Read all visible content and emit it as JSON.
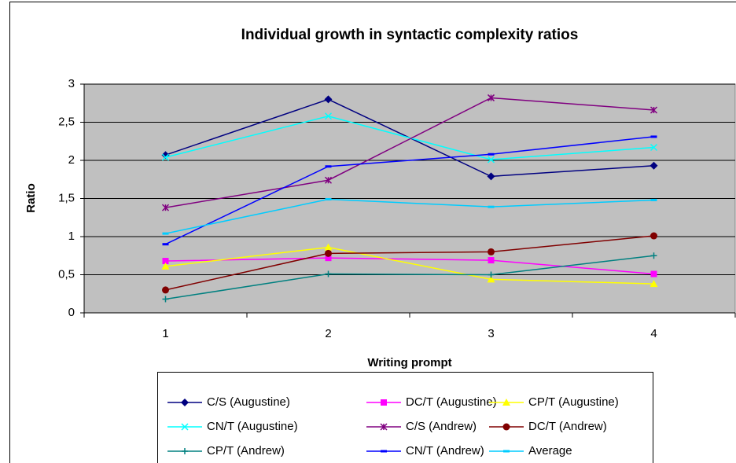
{
  "chart_data": {
    "type": "line",
    "title": "Individual growth in syntactic complexity ratios",
    "x_label": "Writing prompt",
    "y_label": "Ratio",
    "categories": [
      "1",
      "2",
      "3",
      "4"
    ],
    "ylim": [
      0,
      3
    ],
    "yticks": [
      0,
      {
        "value": 0.5,
        "label": "0,5"
      },
      1,
      {
        "value": 1.5,
        "label": "1,5"
      },
      2,
      {
        "value": 2.5,
        "label": "2,5"
      },
      3
    ],
    "grid": true,
    "series": [
      {
        "name": "C/S (Augustine)",
        "color": "#000080",
        "marker": "diamond",
        "values": [
          2.07,
          2.8,
          1.79,
          1.93
        ]
      },
      {
        "name": "DC/T (Augustine)",
        "color": "#FF00FF",
        "marker": "square",
        "values": [
          0.68,
          0.72,
          0.69,
          0.51
        ]
      },
      {
        "name": "CP/T (Augustine)",
        "color": "#FFFF00",
        "marker": "triangle",
        "values": [
          0.61,
          0.86,
          0.44,
          0.38
        ]
      },
      {
        "name": "CN/T (Augustine)",
        "color": "#00FFFF",
        "marker": "x",
        "values": [
          2.04,
          2.58,
          2.01,
          2.17
        ]
      },
      {
        "name": "C/S (Andrew)",
        "color": "#800080",
        "marker": "star",
        "values": [
          1.38,
          1.74,
          2.82,
          2.66
        ]
      },
      {
        "name": "DC/T (Andrew)",
        "color": "#800000",
        "marker": "circle",
        "values": [
          0.3,
          0.78,
          0.8,
          1.01
        ]
      },
      {
        "name": "CP/T (Andrew)",
        "color": "#008080",
        "marker": "plus",
        "values": [
          0.18,
          0.51,
          0.5,
          0.75
        ]
      },
      {
        "name": "CN/T (Andrew)",
        "color": "#0000FF",
        "marker": "dash",
        "values": [
          0.9,
          1.92,
          2.08,
          2.31
        ]
      },
      {
        "name": "Average",
        "color": "#00CCFF",
        "marker": "dash",
        "values": [
          1.04,
          1.49,
          1.39,
          1.48
        ]
      }
    ]
  }
}
